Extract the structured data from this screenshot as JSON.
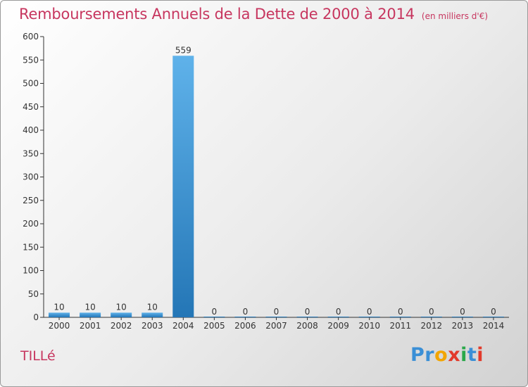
{
  "title": "Remboursements Annuels de la Dette de 2000 à 2014",
  "unit": "(en milliers d'€)",
  "commune": "TILLé",
  "logo": {
    "letters": [
      "P",
      "r",
      "o",
      "x",
      "i",
      "t",
      "i"
    ],
    "colors": [
      "#3a8fd6",
      "#3a8fd6",
      "#f2a500",
      "#e23a2b",
      "#2aa84a",
      "#3a8fd6",
      "#e23a2b"
    ]
  },
  "colors": {
    "accent": "#c7365f",
    "bar_top": "#5fb2ea",
    "bar_bottom": "#2476b6"
  },
  "chart_data": {
    "type": "bar",
    "title": "Remboursements Annuels de la Dette de 2000 à 2014",
    "xlabel": "",
    "ylabel": "en milliers d'€",
    "ylim": [
      0,
      600
    ],
    "yticks": [
      0,
      50,
      100,
      150,
      200,
      250,
      300,
      350,
      400,
      450,
      500,
      550,
      600
    ],
    "categories": [
      "2000",
      "2001",
      "2002",
      "2003",
      "2004",
      "2005",
      "2006",
      "2007",
      "2008",
      "2009",
      "2010",
      "2011",
      "2012",
      "2013",
      "2014"
    ],
    "values": [
      10,
      10,
      10,
      10,
      559,
      0,
      0,
      0,
      0,
      0,
      0,
      0,
      0,
      0,
      0
    ],
    "labels": [
      "10",
      "10",
      "10",
      "10",
      "559",
      "0",
      "0",
      "0",
      "0",
      "0",
      "0",
      "0",
      "0",
      "0",
      "0"
    ],
    "grid": false,
    "legend": "none"
  }
}
